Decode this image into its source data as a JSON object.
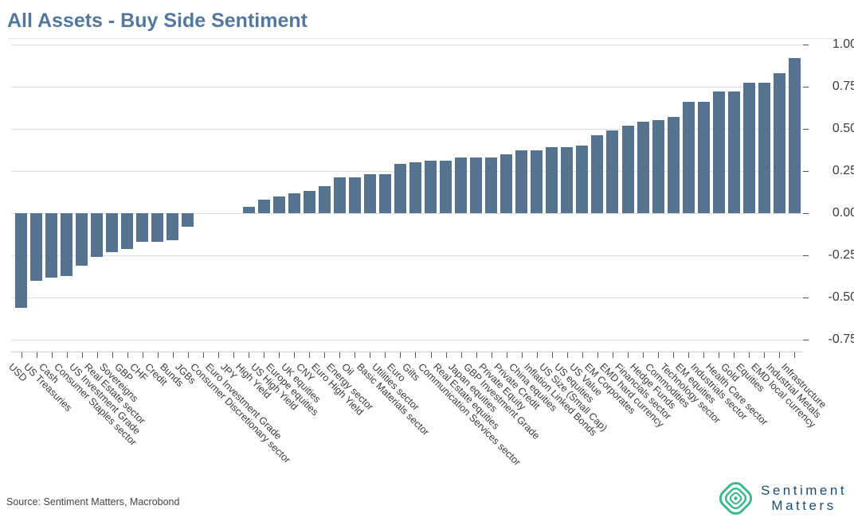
{
  "header": {
    "title": "All Assets - Buy Side Sentiment"
  },
  "footer": {
    "source": "Source: Sentiment Matters, Macrobond",
    "logo_line1": "Sentiment",
    "logo_line2": "Matters"
  },
  "colors": {
    "bar": "#55738f",
    "title": "#54789c",
    "grid": "#dcdfe2",
    "axis": "#c9ccd0",
    "tick": "#555555",
    "logo_green": "#3cb78e",
    "logo_text": "#1d4e70"
  },
  "chart_data": {
    "type": "bar",
    "title": "All Assets - Buy Side Sentiment",
    "xlabel": "",
    "ylabel": "",
    "ylim": [
      -0.75,
      1.0
    ],
    "grid": true,
    "legend": false,
    "ytick_values": [
      1.0,
      0.75,
      0.5,
      0.25,
      0.0,
      -0.25,
      -0.5,
      -0.75
    ],
    "ytick_labels": [
      "1.00",
      "0.75",
      "0.50",
      "0.25",
      "0.00",
      "-0.25",
      "-0.50",
      "-0.75"
    ],
    "categories": [
      "USD",
      "US Treasuries",
      "Cash",
      "Consumer Staples sector",
      "US Investment Grade",
      "Real Estate sector",
      "Sovereigns",
      "GBP",
      "CHF",
      "Credit",
      "Bunds",
      "JGBs",
      "Consumer Discretionary sector",
      "Euro Investment Grade",
      "JPY",
      "High Yield",
      "US High Yield",
      "Europe equities",
      "UK equities",
      "CNY",
      "Euro High Yield",
      "Energy sector",
      "Oil",
      "Basic Materials sector",
      "Utilities sector",
      "Euro",
      "Gilts",
      "Communication Services sector",
      "Real Estate equities",
      "Japan equities",
      "GBP Investment Grade",
      "Private Equity",
      "Private Credit",
      "China equities",
      "Inflation Linked Bonds",
      "US Size (Small Cap)",
      "US equities",
      "US Value",
      "EM Corporates",
      "EMD hard currency",
      "Financials sector",
      "Hedge Funds",
      "Commodities",
      "Technology sector",
      "EM equities",
      "Industrials sector",
      "Health Care sector",
      "Gold",
      "Equities",
      "EMD local currency",
      "Industrial Metals",
      "Infrastructure"
    ],
    "values": [
      -0.56,
      -0.4,
      -0.38,
      -0.37,
      -0.31,
      -0.26,
      -0.23,
      -0.21,
      -0.17,
      -0.17,
      -0.16,
      -0.08,
      0.0,
      0.0,
      0.0,
      0.04,
      0.08,
      0.1,
      0.12,
      0.13,
      0.16,
      0.21,
      0.21,
      0.23,
      0.23,
      0.29,
      0.3,
      0.31,
      0.31,
      0.33,
      0.33,
      0.33,
      0.35,
      0.37,
      0.37,
      0.39,
      0.39,
      0.4,
      0.46,
      0.49,
      0.52,
      0.54,
      0.55,
      0.57,
      0.66,
      0.66,
      0.72,
      0.72,
      0.77,
      0.77,
      0.83,
      0.92
    ]
  }
}
